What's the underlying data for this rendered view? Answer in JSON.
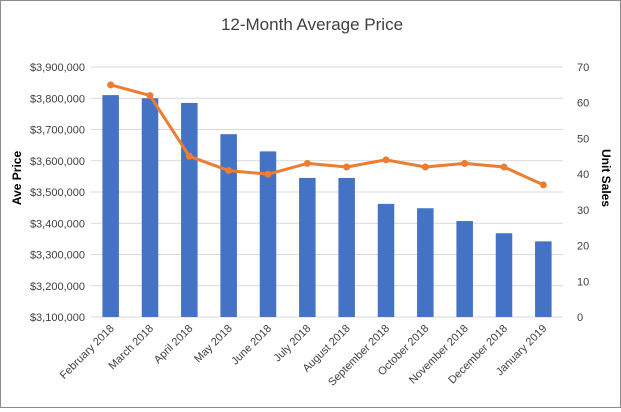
{
  "chart_data": {
    "type": "bar+line",
    "title": "12-Month Average Price",
    "ylabel_left": "Ave Price",
    "ylabel_right": "Unit Sales",
    "categories": [
      "February 2018",
      "March 2018",
      "April 2018",
      "May 2018",
      "June 2018",
      "July 2018",
      "August 2018",
      "September 2018",
      "October 2018",
      "November 2018",
      "December 2018",
      "January 2019"
    ],
    "left_axis": {
      "min": 3100000,
      "max": 3900000,
      "step": 100000,
      "tick_labels": [
        "$3,100,000",
        "$3,200,000",
        "$3,300,000",
        "$3,400,000",
        "$3,500,000",
        "$3,600,000",
        "$3,700,000",
        "$3,800,000",
        "$3,900,000"
      ]
    },
    "right_axis": {
      "min": 0,
      "max": 70,
      "step": 10,
      "tick_labels": [
        "0",
        "10",
        "20",
        "30",
        "40",
        "50",
        "60",
        "70"
      ]
    },
    "series": [
      {
        "type": "bar",
        "axis": "left",
        "color": "#4472c4",
        "values": [
          3810000,
          3800000,
          3785000,
          3685000,
          3630000,
          3545000,
          3545000,
          3462000,
          3448000,
          3407000,
          3368000,
          3342000
        ]
      },
      {
        "type": "line",
        "axis": "right",
        "color": "#ed7d31",
        "values": [
          65,
          62,
          45,
          41,
          40,
          43,
          42,
          44,
          42,
          43,
          42,
          37
        ]
      }
    ],
    "grid": true,
    "legend": "none"
  }
}
